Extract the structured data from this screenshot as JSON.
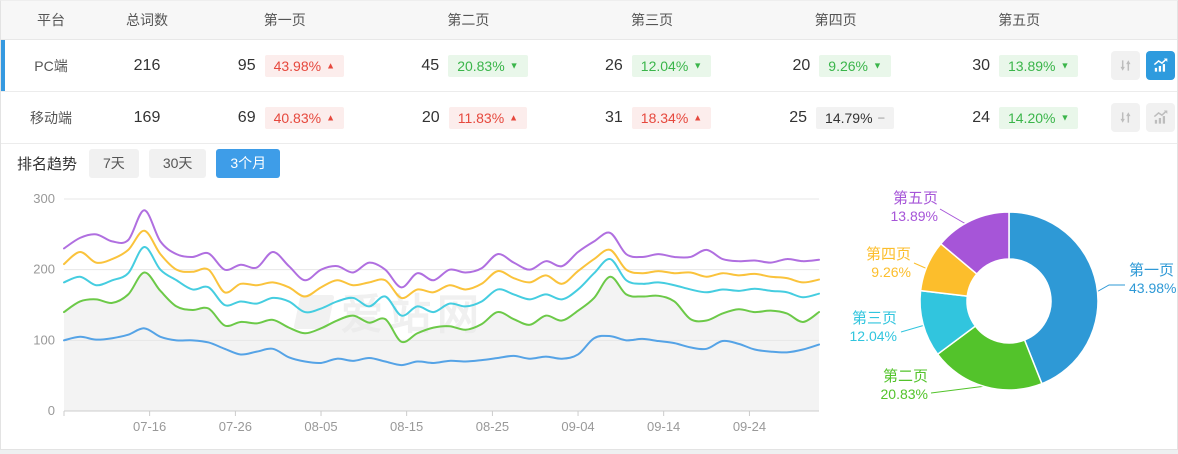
{
  "table": {
    "headers": [
      "平台",
      "总词数",
      "第一页",
      "第二页",
      "第三页",
      "第四页",
      "第五页"
    ],
    "rows": [
      {
        "platform": "PC端",
        "total": "216",
        "selected": true,
        "pages": [
          {
            "count": "95",
            "pct": "43.98%",
            "arrow": "▲",
            "tone": "red"
          },
          {
            "count": "45",
            "pct": "20.83%",
            "arrow": "▼",
            "tone": "green"
          },
          {
            "count": "26",
            "pct": "12.04%",
            "arrow": "▼",
            "tone": "green"
          },
          {
            "count": "20",
            "pct": "9.26%",
            "arrow": "▼",
            "tone": "green"
          },
          {
            "count": "30",
            "pct": "13.89%",
            "arrow": "▼",
            "tone": "green"
          }
        ]
      },
      {
        "platform": "移动端",
        "total": "169",
        "selected": false,
        "pages": [
          {
            "count": "69",
            "pct": "40.83%",
            "arrow": "▲",
            "tone": "red"
          },
          {
            "count": "20",
            "pct": "11.83%",
            "arrow": "▲",
            "tone": "red"
          },
          {
            "count": "31",
            "pct": "18.34%",
            "arrow": "▲",
            "tone": "red"
          },
          {
            "count": "25",
            "pct": "14.79%",
            "arrow": "−",
            "tone": "neutral"
          },
          {
            "count": "24",
            "pct": "14.20%",
            "arrow": "▼",
            "tone": "green"
          }
        ]
      }
    ]
  },
  "trend_section": {
    "title": "排名趋势",
    "tabs": [
      {
        "label": "7天",
        "active": false
      },
      {
        "label": "30天",
        "active": false
      },
      {
        "label": "3个月",
        "active": true
      }
    ]
  },
  "watermark": "爱站网",
  "colors": {
    "accent_blue": "#3599e0",
    "badge_red_text": "#e6483d",
    "badge_red_bg": "#fcedec",
    "badge_green_text": "#3ab54a",
    "badge_green_bg": "#e9f7ea",
    "badge_neutral_bg": "#f2f2f2"
  },
  "chart_data": [
    {
      "type": "line",
      "title": "排名趋势 (3个月)",
      "stacked_cumulative": true,
      "grid": true,
      "ylim": [
        0,
        300
      ],
      "yticks": [
        0,
        100,
        200,
        300
      ],
      "xticks": [
        "07-16",
        "07-26",
        "08-05",
        "08-15",
        "08-25",
        "09-04",
        "09-14",
        "09-24"
      ],
      "xtick_index": [
        5.33,
        10.67,
        16,
        21.33,
        26.67,
        32,
        37.33,
        42.67
      ],
      "colors": [
        "#55a3e6",
        "#6cc948",
        "#45cde0",
        "#fac33c",
        "#b06fe0"
      ],
      "area_fill_series": 1,
      "series": [
        {
          "name": "第一页",
          "values": [
            100,
            105,
            101,
            103,
            108,
            117,
            105,
            100,
            100,
            97,
            88,
            80,
            84,
            88,
            76,
            70,
            68,
            74,
            71,
            75,
            70,
            65,
            70,
            68,
            71,
            70,
            72,
            75,
            78,
            74,
            77,
            74,
            80,
            103,
            106,
            100,
            102,
            99,
            96,
            90,
            88,
            99,
            95,
            87,
            84,
            83,
            87,
            94
          ]
        },
        {
          "name": "第二页",
          "values": [
            140,
            155,
            158,
            153,
            165,
            196,
            170,
            148,
            143,
            145,
            121,
            126,
            124,
            129,
            118,
            110,
            117,
            128,
            135,
            125,
            130,
            98,
            110,
            118,
            120,
            115,
            123,
            140,
            130,
            122,
            135,
            128,
            142,
            160,
            190,
            165,
            162,
            163,
            155,
            130,
            128,
            138,
            144,
            140,
            142,
            138,
            126,
            140
          ]
        },
        {
          "name": "第三页",
          "values": [
            182,
            190,
            178,
            185,
            195,
            232,
            200,
            185,
            172,
            175,
            150,
            155,
            152,
            160,
            155,
            140,
            145,
            155,
            160,
            148,
            162,
            135,
            148,
            140,
            152,
            148,
            155,
            172,
            165,
            158,
            165,
            158,
            172,
            195,
            215,
            185,
            180,
            182,
            178,
            172,
            168,
            172,
            170,
            173,
            170,
            168,
            161,
            166
          ]
        },
        {
          "name": "第四页",
          "values": [
            208,
            225,
            210,
            215,
            228,
            255,
            222,
            200,
            197,
            200,
            168,
            180,
            178,
            182,
            175,
            162,
            175,
            185,
            178,
            182,
            185,
            160,
            172,
            168,
            178,
            172,
            180,
            198,
            188,
            182,
            192,
            180,
            198,
            215,
            228,
            200,
            195,
            198,
            195,
            196,
            190,
            195,
            192,
            194,
            190,
            188,
            182,
            186
          ]
        },
        {
          "name": "第五页",
          "values": [
            230,
            245,
            250,
            240,
            242,
            284,
            240,
            222,
            218,
            223,
            200,
            207,
            203,
            225,
            205,
            185,
            200,
            205,
            196,
            210,
            200,
            175,
            195,
            185,
            200,
            196,
            202,
            222,
            210,
            200,
            212,
            205,
            225,
            240,
            252,
            222,
            218,
            222,
            218,
            218,
            228,
            215,
            212,
            213,
            210,
            215,
            212,
            214
          ]
        }
      ]
    },
    {
      "type": "pie",
      "donut": true,
      "labels": [
        "第一页",
        "第二页",
        "第三页",
        "第四页",
        "第五页"
      ],
      "values": [
        43.98,
        20.83,
        12.04,
        9.26,
        13.89
      ],
      "display": [
        "43.98%",
        "20.83%",
        "12.04%",
        "9.26%",
        "13.89%"
      ],
      "colors": [
        "#2e99d6",
        "#53c32b",
        "#31c5de",
        "#fcbe2c",
        "#a655d8"
      ]
    }
  ]
}
